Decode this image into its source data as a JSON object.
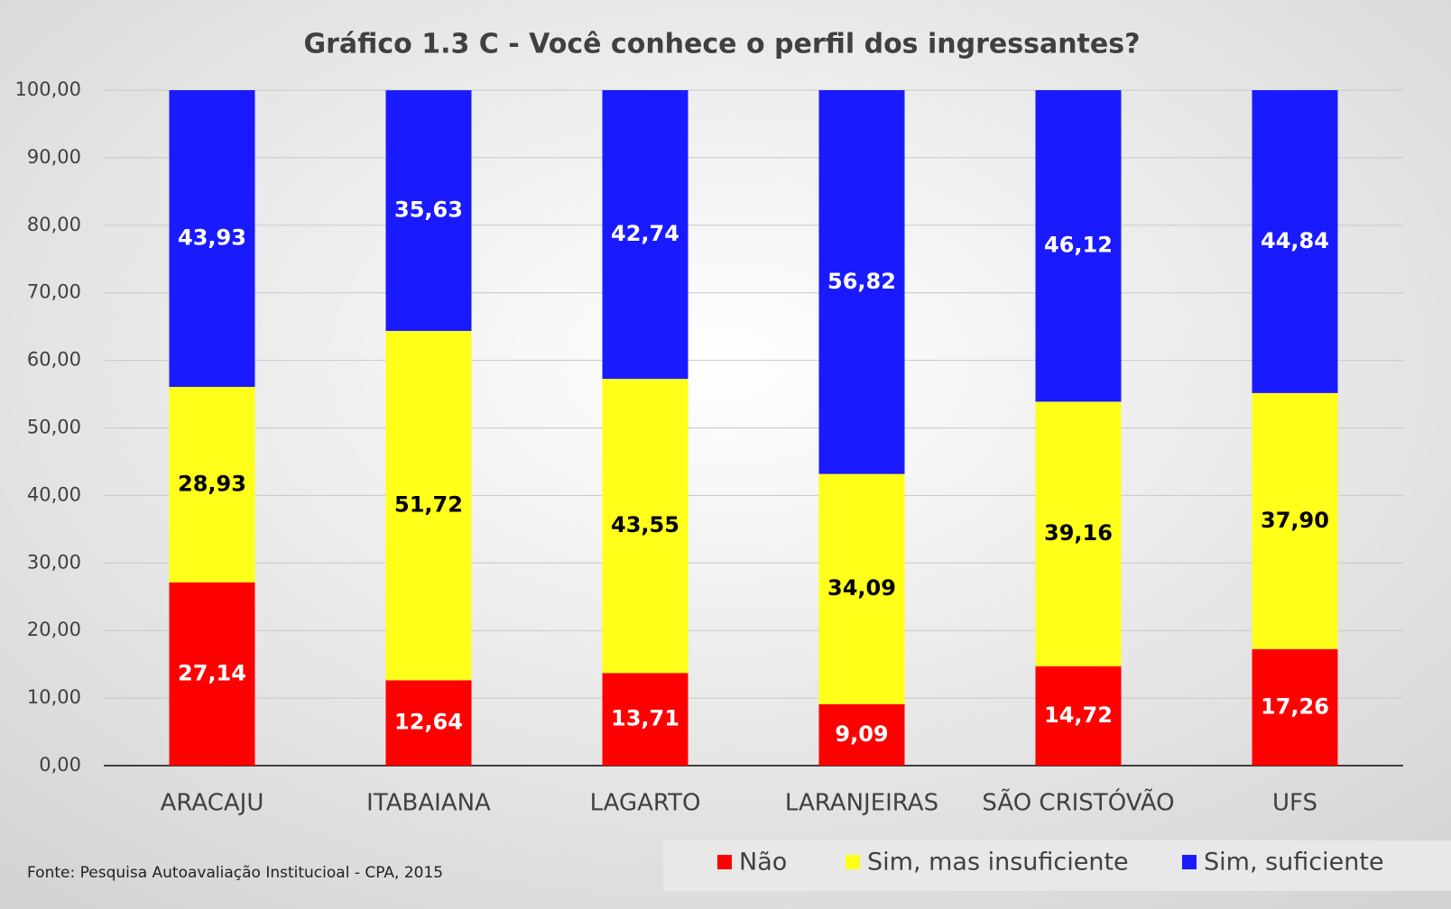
{
  "chart_data": {
    "type": "stacked_bar",
    "title": "Gráfico 1.3 C - Você conhece o perfil dos ingressantes?",
    "source": "Fonte: Pesquisa Autoavaliação Institucioal - CPA, 2015",
    "categories": [
      "ARACAJU",
      "ITABAIANA",
      "LAGARTO",
      "LARANJEIRAS",
      "SÃO CRISTÓVÃO",
      "UFS"
    ],
    "series": [
      {
        "name": "Não",
        "color": "#ff0000",
        "label_color": "#ffffff",
        "values": [
          27.14,
          12.64,
          13.71,
          9.09,
          14.72,
          17.26
        ],
        "value_labels": [
          "27,14",
          "12,64",
          "13,71",
          "9,09",
          "14,72",
          "17,26"
        ]
      },
      {
        "name": "Sim, mas insuficiente",
        "color": "#ffff19",
        "label_color": "#000000",
        "values": [
          28.93,
          51.72,
          43.55,
          34.09,
          39.16,
          37.9
        ],
        "value_labels": [
          "28,93",
          "51,72",
          "43,55",
          "34,09",
          "39,16",
          "37,90"
        ]
      },
      {
        "name": "Sim, suficiente",
        "color": "#1a1aff",
        "label_color": "#ffffff",
        "values": [
          43.93,
          35.63,
          42.74,
          56.82,
          46.12,
          44.84
        ],
        "value_labels": [
          "43,93",
          "35,63",
          "42,74",
          "56,82",
          "46,12",
          "44,84"
        ]
      }
    ],
    "ylim": [
      0,
      100
    ],
    "yticks": [
      {
        "value": 0,
        "label": "0,00"
      },
      {
        "value": 10,
        "label": "10,00"
      },
      {
        "value": 20,
        "label": "20,00"
      },
      {
        "value": 30,
        "label": "30,00"
      },
      {
        "value": 40,
        "label": "40,00"
      },
      {
        "value": 50,
        "label": "50,00"
      },
      {
        "value": 60,
        "label": "60,00"
      },
      {
        "value": 70,
        "label": "70,00"
      },
      {
        "value": 80,
        "label": "80,00"
      },
      {
        "value": 90,
        "label": "90,00"
      },
      {
        "value": 100,
        "label": "100,00"
      }
    ],
    "grid": true,
    "legend": "bottom-right"
  }
}
